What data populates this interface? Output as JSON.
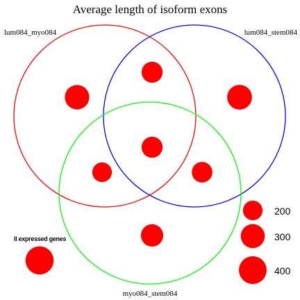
{
  "diagram": {
    "title": "Average length of isoform exons",
    "sets": [
      {
        "key": "A",
        "label": "lum084_myo084",
        "color": "#ff0000"
      },
      {
        "key": "B",
        "label": "lum084_stem084",
        "color": "#0000ff"
      },
      {
        "key": "C",
        "label": "myo084_stem084",
        "color": "#00ff00"
      }
    ],
    "bubble_color": "#ff0000",
    "regions": [
      {
        "name": "A-only",
        "value": 310
      },
      {
        "name": "A-and-B",
        "value": 230
      },
      {
        "name": "B-only",
        "value": 320
      },
      {
        "name": "A-and-B-and-C",
        "value": 230
      },
      {
        "name": "A-and-C",
        "value": 200
      },
      {
        "name": "B-and-C",
        "value": 220
      },
      {
        "name": "C-only",
        "value": 260
      }
    ],
    "outside": {
      "label": "ll expressed genes",
      "value": 410
    },
    "size_legend": [
      {
        "label": "200",
        "value": 200
      },
      {
        "label": "300",
        "value": 300
      },
      {
        "label": "400",
        "value": 400
      }
    ]
  }
}
